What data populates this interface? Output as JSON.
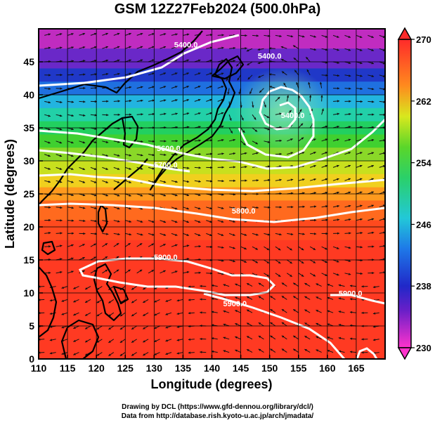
{
  "title": "GSM 12Z27Feb2024 (500.0hPa)",
  "credits": {
    "line1": "Drawing by DCL (https://www.gfd-dennou.org/library/dcl/)",
    "line2": "Data from http://database.rish.kyoto-u.ac.jp/arch/jmadata/"
  },
  "chart_data": {
    "type": "map",
    "xlabel": "Longitude (degrees)",
    "ylabel": "Latitude (degrees)",
    "xlim": [
      110,
      170
    ],
    "ylim": [
      0,
      50
    ],
    "x_ticks": [
      110,
      115,
      120,
      125,
      130,
      135,
      140,
      145,
      150,
      155,
      160,
      165
    ],
    "y_ticks": [
      0,
      5,
      10,
      15,
      20,
      25,
      30,
      35,
      40,
      45
    ],
    "colorbar": {
      "min": 230,
      "max": 270,
      "labels": [
        270,
        262,
        254,
        246,
        238,
        230
      ]
    },
    "contour_labels": [
      {
        "text": "5400.0",
        "lon": 135.5,
        "lat": 47.2
      },
      {
        "text": "5400.0",
        "lon": 150.0,
        "lat": 45.5
      },
      {
        "text": "5400.0",
        "lon": 154.0,
        "lat": 36.5
      },
      {
        "text": "5600.0",
        "lon": 132.5,
        "lat": 31.5
      },
      {
        "text": "5700.0",
        "lon": 132.0,
        "lat": 29.0
      },
      {
        "text": "5800.0",
        "lon": 145.5,
        "lat": 22.0
      },
      {
        "text": "5900.0",
        "lon": 132.0,
        "lat": 15.0
      },
      {
        "text": "5900.0",
        "lon": 144.0,
        "lat": 8.0
      },
      {
        "text": "5900.0",
        "lon": 164.0,
        "lat": 9.5
      }
    ],
    "low_center": {
      "lon": 150.5,
      "lat": 39.5
    }
  },
  "colors": {
    "frame": "#000000",
    "contour": "#ffffff",
    "coastline": "#000000"
  }
}
